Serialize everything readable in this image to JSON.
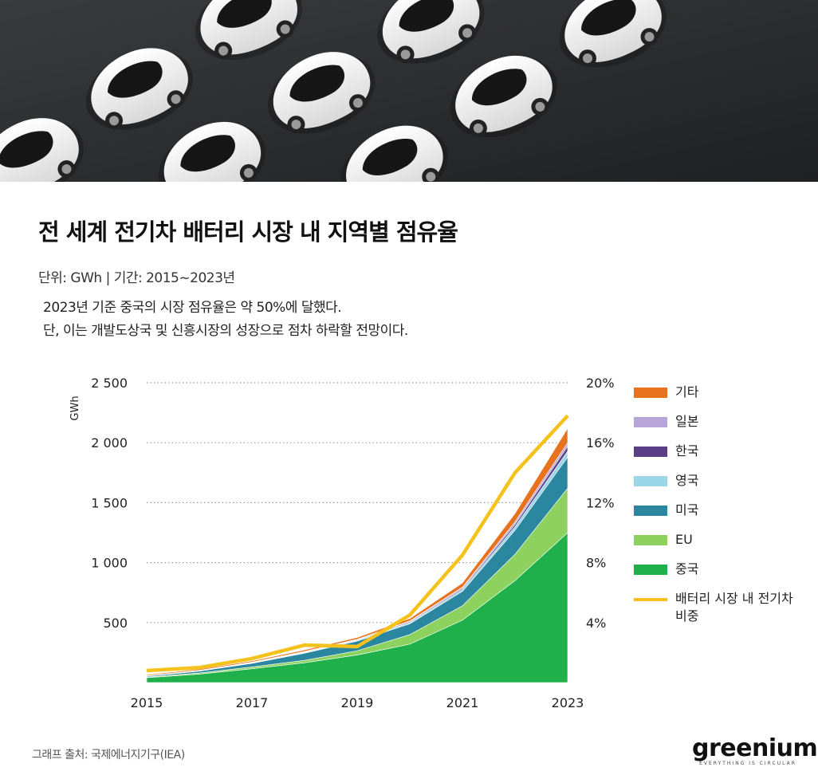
{
  "header": {
    "title": "전 세계 전기차 배터리 시장 내 지역별 점유율",
    "meta": "단위: GWh | 기간: 2015~2023년",
    "desc": [
      "2023년 기준 중국의 시장 점유율은 약 50%에 달했다.",
      "단, 이는 개발도상국 및 신흥시장의 성장으로 점차 하락할 전망이다."
    ]
  },
  "chart_data": {
    "type": "area",
    "stacked": true,
    "x": [
      2015,
      2016,
      2017,
      2018,
      2019,
      2020,
      2021,
      2022,
      2023
    ],
    "x_tick_labels": [
      "2015",
      "2017",
      "2019",
      "2021",
      "2023"
    ],
    "ylabel": "GWh",
    "ylim": [
      0,
      2500
    ],
    "y_ticks": [
      500,
      1000,
      1500,
      2000,
      2500
    ],
    "y_tick_labels": [
      "500",
      "1 000",
      "1 500",
      "2 000",
      "2 500"
    ],
    "y2lim": [
      0,
      20
    ],
    "y2_ticks": [
      4,
      8,
      12,
      16,
      20
    ],
    "y2_tick_labels": [
      "4%",
      "8%",
      "12%",
      "16%",
      "20%"
    ],
    "grid": "dotted horizontal",
    "legend_position": "right",
    "series": [
      {
        "name": "중국",
        "color": "#1fb04c",
        "values": [
          40,
          70,
          115,
          165,
          230,
          320,
          520,
          850,
          1250
        ]
      },
      {
        "name": "EU",
        "color": "#8dd15f",
        "values": [
          5,
          10,
          15,
          20,
          35,
          80,
          120,
          220,
          370
        ]
      },
      {
        "name": "미국",
        "color": "#2b86a0",
        "values": [
          8,
          15,
          30,
          60,
          80,
          90,
          120,
          200,
          260
        ]
      },
      {
        "name": "영국",
        "color": "#9ad6e6",
        "values": [
          1,
          2,
          3,
          5,
          6,
          10,
          15,
          30,
          50
        ]
      },
      {
        "name": "한국",
        "color": "#5a3e86",
        "values": [
          1,
          2,
          3,
          5,
          5,
          8,
          10,
          20,
          40
        ]
      },
      {
        "name": "일본",
        "color": "#b8a6d9",
        "values": [
          2,
          3,
          4,
          5,
          5,
          6,
          10,
          20,
          30
        ]
      },
      {
        "name": "기타",
        "color": "#e8731f",
        "values": [
          8,
          10,
          10,
          12,
          15,
          20,
          35,
          70,
          120
        ]
      }
    ],
    "line_series": {
      "name": "배터리 시장 내 전기차 비중",
      "color": "#f5c21b",
      "axis": "right",
      "values": [
        0.8,
        1.0,
        1.6,
        2.5,
        2.4,
        4.5,
        8.5,
        14.0,
        17.8
      ]
    }
  },
  "legend": [
    {
      "label": "기타",
      "color": "#e8731f",
      "kind": "area"
    },
    {
      "label": "일본",
      "color": "#b8a6d9",
      "kind": "area"
    },
    {
      "label": "한국",
      "color": "#5a3e86",
      "kind": "area"
    },
    {
      "label": "영국",
      "color": "#9ad6e6",
      "kind": "area"
    },
    {
      "label": "미국",
      "color": "#2b86a0",
      "kind": "area"
    },
    {
      "label": "EU",
      "color": "#8dd15f",
      "kind": "area"
    },
    {
      "label": "중국",
      "color": "#1fb04c",
      "kind": "area"
    },
    {
      "label": "배터리 시장 내 전기차 비중",
      "color": "#f5c21b",
      "kind": "line"
    }
  ],
  "footer": {
    "source": "그래프 출처: 국제에너지기구(IEA)",
    "brand": "greenium",
    "tagline": "EVERYTHING IS CIRCULAR"
  }
}
